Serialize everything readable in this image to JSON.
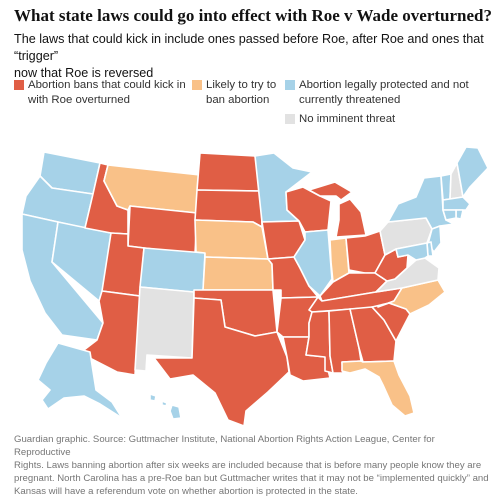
{
  "title": "What state laws could go into effect with Roe v Wade overturned?",
  "subtitle_lines": [
    "The laws that could kick in include ones passed before Roe, after Roe and ones that “trigger”",
    "now that Roe is reversed"
  ],
  "legend": [
    {
      "lines": [
        "Abortion bans that could kick in",
        "with Roe overturned"
      ],
      "color": "#e05e45"
    },
    {
      "lines": [
        "Likely to try to",
        "ban abortion"
      ],
      "color": "#f9c188"
    },
    {
      "lines": [
        "Abortion legally protected and not",
        "currently threatened"
      ],
      "color": "#a6d2e8"
    },
    {
      "lines": [
        "No imminent threat"
      ],
      "color": "#e2e2e2"
    }
  ],
  "source_lines": [
    "Guardian graphic. Source: Guttmacher Institute, National Abortion Rights Action League, Center for Reproductive",
    "Rights. Laws banning abortion after six weeks are included because that is before many people know they are",
    "pregnant. North Carolina has a pre-Roe ban but Guttmacher writes that it may not be “implemented quickly” and",
    "Kansas will have a referendum vote on whether abortion is protected in the state."
  ],
  "state_status": {
    "WA": "protected",
    "OR": "protected",
    "CA": "protected",
    "NV": "protected",
    "ID": "ban",
    "MT": "likely",
    "WY": "ban",
    "UT": "ban",
    "AZ": "ban",
    "CO": "protected",
    "NM": "none",
    "ND": "ban",
    "SD": "ban",
    "NE": "likely",
    "KS": "likely",
    "OK": "ban",
    "TX": "ban",
    "MN": "protected",
    "IA": "ban",
    "MO": "ban",
    "AR": "ban",
    "LA": "ban",
    "WI": "ban",
    "IL": "protected",
    "MI": "ban",
    "IN": "likely",
    "OH": "ban",
    "KY": "ban",
    "TN": "ban",
    "MS": "ban",
    "AL": "ban",
    "GA": "ban",
    "FL": "likely",
    "SC": "ban",
    "NC": "likely",
    "VA": "none",
    "WV": "ban",
    "PA": "none",
    "NY": "protected",
    "VT": "protected",
    "NH": "none",
    "ME": "protected",
    "MA": "protected",
    "RI": "protected",
    "CT": "protected",
    "NJ": "protected",
    "DE": "protected",
    "MD": "protected",
    "AK": "protected",
    "HI": "protected"
  },
  "colors": {
    "ban": "#e05e45",
    "likely": "#f9c188",
    "protected": "#a6d2e8",
    "none": "#e2e2e2",
    "border": "#ffffff"
  }
}
